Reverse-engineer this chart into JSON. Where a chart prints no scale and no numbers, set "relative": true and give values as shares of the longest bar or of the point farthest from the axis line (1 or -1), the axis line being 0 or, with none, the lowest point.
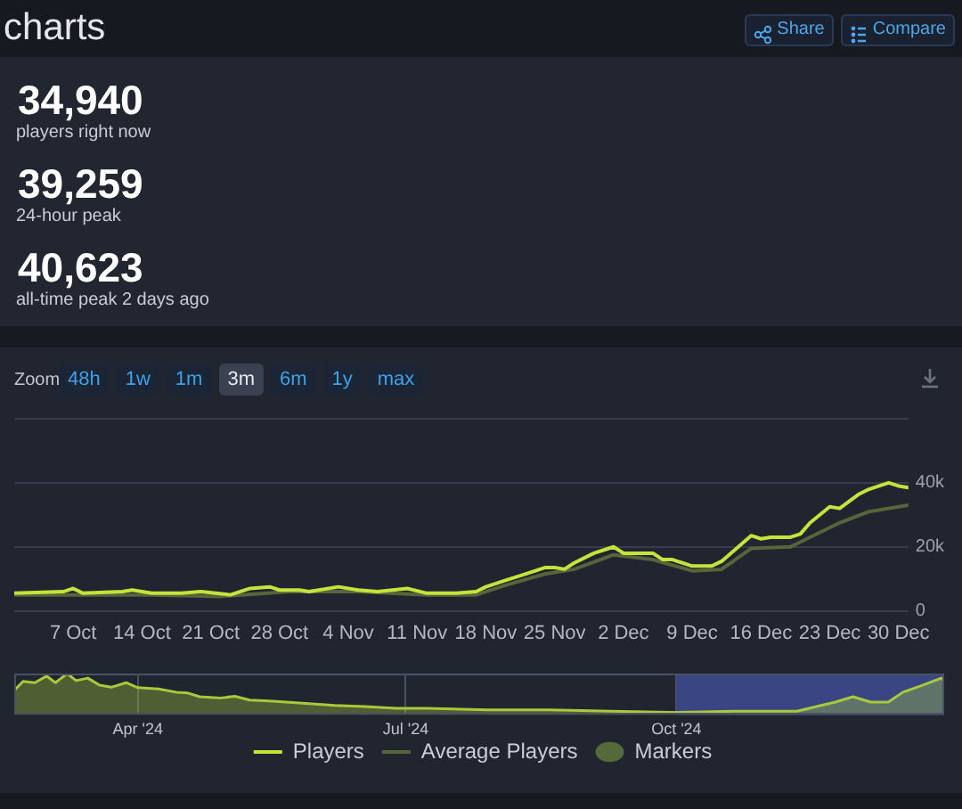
{
  "chart_data": [
    {
      "type": "other",
      "title": "charts",
      "annotations": [
        "34,940",
        "players right now",
        "39,259",
        "24-hour peak",
        "40,623",
        "all-time peak 2 days ago",
        "Share",
        "Compare"
      ]
    },
    {
      "type": "line",
      "series": [
        {
          "name": "Players",
          "color": "#c5e33a",
          "x": [
            "2024-10-01",
            "2024-10-06",
            "2024-10-07",
            "2024-10-08",
            "2024-10-12",
            "2024-10-13",
            "2024-10-15",
            "2024-10-18",
            "2024-10-20",
            "2024-10-23",
            "2024-10-25",
            "2024-10-27",
            "2024-10-28",
            "2024-10-30",
            "2024-10-31",
            "2024-11-03",
            "2024-11-05",
            "2024-11-07",
            "2024-11-10",
            "2024-11-12",
            "2024-11-15",
            "2024-11-17",
            "2024-11-18",
            "2024-11-20",
            "2024-11-22",
            "2024-11-24",
            "2024-11-25",
            "2024-11-26",
            "2024-11-27",
            "2024-11-29",
            "2024-12-01",
            "2024-12-02",
            "2024-12-05",
            "2024-12-06",
            "2024-12-07",
            "2024-12-09",
            "2024-12-11",
            "2024-12-12",
            "2024-12-15",
            "2024-12-16",
            "2024-12-17",
            "2024-12-19",
            "2024-12-20",
            "2024-12-21",
            "2024-12-23",
            "2024-12-24",
            "2024-12-26",
            "2024-12-27",
            "2024-12-29",
            "2024-12-30",
            "2024-12-31"
          ],
          "values": [
            5500,
            6000,
            7000,
            5500,
            6000,
            6500,
            5500,
            5500,
            6000,
            5000,
            7000,
            7500,
            6500,
            6500,
            6000,
            7500,
            6500,
            6000,
            7000,
            5500,
            5500,
            6000,
            7500,
            9500,
            11500,
            13500,
            13500,
            13000,
            15000,
            18000,
            20000,
            18000,
            18000,
            16000,
            16000,
            14000,
            14000,
            15500,
            23500,
            22500,
            23000,
            23000,
            24000,
            27500,
            32500,
            32000,
            36500,
            38000,
            40000,
            39000,
            38500
          ]
        },
        {
          "name": "Average Players",
          "color": "#56653a",
          "x": [
            "2024-10-01",
            "2024-10-08",
            "2024-10-15",
            "2024-10-22",
            "2024-10-29",
            "2024-11-05",
            "2024-11-12",
            "2024-11-17",
            "2024-11-20",
            "2024-11-24",
            "2024-11-27",
            "2024-12-01",
            "2024-12-05",
            "2024-12-09",
            "2024-12-12",
            "2024-12-15",
            "2024-12-19",
            "2024-12-21",
            "2024-12-24",
            "2024-12-27",
            "2024-12-31"
          ],
          "values": [
            5000,
            5000,
            5000,
            4500,
            6000,
            6000,
            5000,
            5000,
            8000,
            11500,
            13000,
            17500,
            16000,
            12500,
            13000,
            19500,
            20000,
            23000,
            27500,
            31000,
            33000
          ]
        },
        {
          "name": "Markers",
          "type": "scatter",
          "color": "#56693a"
        }
      ],
      "xlim": [
        "2024-10-01",
        "2024-12-31"
      ],
      "xticks": [
        {
          "value": "2024-10-07",
          "label": "7 Oct"
        },
        {
          "value": "2024-10-14",
          "label": "14 Oct"
        },
        {
          "value": "2024-10-21",
          "label": "21 Oct"
        },
        {
          "value": "2024-10-28",
          "label": "28 Oct"
        },
        {
          "value": "2024-11-04",
          "label": "4 Nov"
        },
        {
          "value": "2024-11-11",
          "label": "11 Nov"
        },
        {
          "value": "2024-11-18",
          "label": "18 Nov"
        },
        {
          "value": "2024-11-25",
          "label": "25 Nov"
        },
        {
          "value": "2024-12-02",
          "label": "2 Dec"
        },
        {
          "value": "2024-12-09",
          "label": "9 Dec"
        },
        {
          "value": "2024-12-16",
          "label": "16 Dec"
        },
        {
          "value": "2024-12-23",
          "label": "23 Dec"
        },
        {
          "value": "2024-12-30",
          "label": "30 Dec"
        }
      ],
      "ylim": [
        0,
        60000
      ],
      "yticks": [
        0,
        {
          "value": 20000,
          "label": "20k"
        },
        {
          "value": 40000,
          "label": "40k"
        },
        {
          "value": 60000,
          "label": null
        }
      ],
      "grid": "y",
      "legend": "bottom",
      "annotations": [
        "Zoom",
        "48h",
        "1w",
        "1m",
        "3m",
        "6m",
        "1y",
        "max"
      ]
    },
    {
      "type": "area",
      "relative": true,
      "series": [
        {
          "color": "#a9c93a",
          "x": [
            "2024-02-19",
            "2024-02-22",
            "2024-02-26",
            "2024-03-01",
            "2024-03-04",
            "2024-03-08",
            "2024-03-11",
            "2024-03-15",
            "2024-03-19",
            "2024-03-23",
            "2024-03-28",
            "2024-04-01",
            "2024-04-08",
            "2024-04-14",
            "2024-04-18",
            "2024-04-22",
            "2024-04-29",
            "2024-05-04",
            "2024-05-09",
            "2024-05-17",
            "2024-05-28",
            "2024-06-07",
            "2024-06-17",
            "2024-06-28",
            "2024-07-08",
            "2024-07-29",
            "2024-08-19",
            "2024-09-09",
            "2024-09-29",
            "2024-10-21",
            "2024-11-11",
            "2024-11-17",
            "2024-11-24",
            "2024-11-30",
            "2024-12-06",
            "2024-12-12",
            "2024-12-17",
            "2024-12-23",
            "2024-12-30",
            "2024-12-31"
          ],
          "values": [
            0.59,
            0.81,
            0.78,
            0.94,
            0.78,
            1,
            0.83,
            0.89,
            0.72,
            0.67,
            0.78,
            0.66,
            0.63,
            0.55,
            0.53,
            0.44,
            0.41,
            0.45,
            0.36,
            0.33,
            0.28,
            0.23,
            0.2,
            0.16,
            0.16,
            0.12,
            0.12,
            0.09,
            0.06,
            0.09,
            0.09,
            0.19,
            0.31,
            0.44,
            0.31,
            0.31,
            0.55,
            0.7,
            0.89,
            0.81
          ]
        }
      ],
      "xlim": [
        "2024-02-19",
        "2024-12-31"
      ],
      "xticks": [
        {
          "value": "2024-04-01",
          "label": "Apr '24"
        },
        {
          "value": "2024-07-01",
          "label": "Jul '24"
        },
        {
          "value": "2024-10-01",
          "label": "Oct '24"
        }
      ],
      "grid": "x",
      "bands": [
        {
          "axis": "x",
          "from": "2024-10-01",
          "to": "2024-12-31",
          "color": "#3a4583"
        }
      ]
    }
  ]
}
